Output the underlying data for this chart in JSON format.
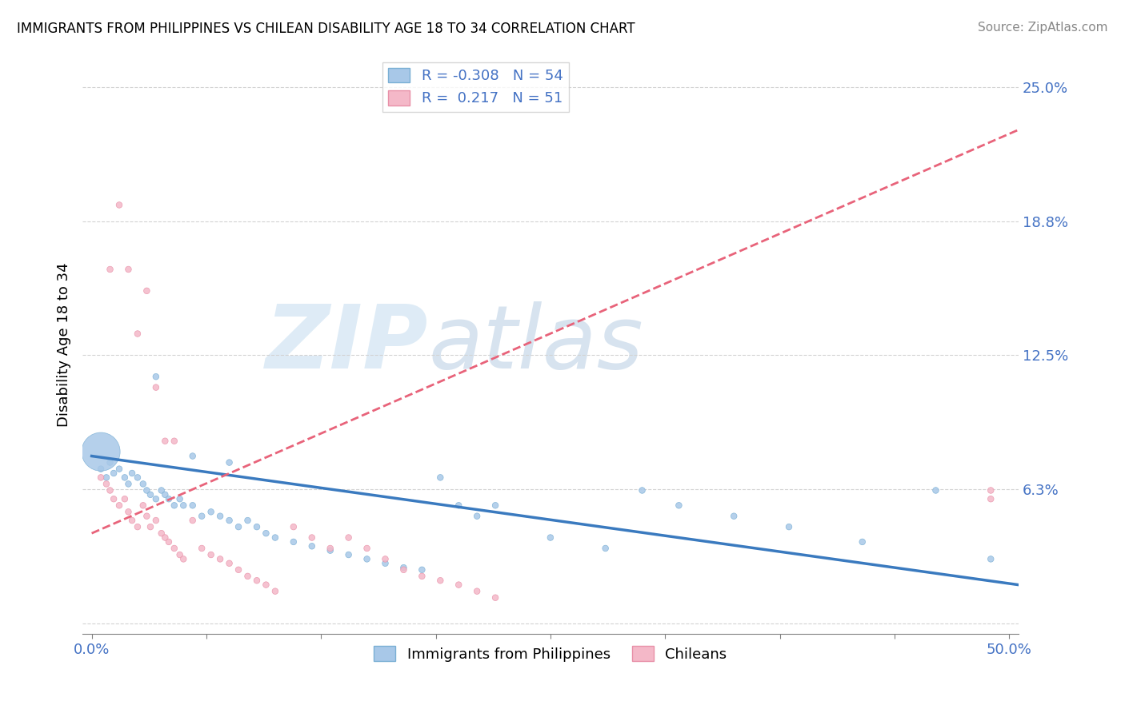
{
  "title": "IMMIGRANTS FROM PHILIPPINES VS CHILEAN DISABILITY AGE 18 TO 34 CORRELATION CHART",
  "source": "Source: ZipAtlas.com",
  "xlabel": "",
  "ylabel": "Disability Age 18 to 34",
  "xlim": [
    -0.005,
    0.505
  ],
  "ylim": [
    -0.005,
    0.265
  ],
  "ytick_vals": [
    0.0,
    0.0625,
    0.125,
    0.1875,
    0.25
  ],
  "ytick_labels": [
    "",
    "6.3%",
    "12.5%",
    "18.8%",
    "25.0%"
  ],
  "blue_color": "#a8c8e8",
  "pink_color": "#f4b8c8",
  "blue_edge_color": "#7aafd4",
  "pink_edge_color": "#e890a8",
  "blue_line_color": "#3a7abf",
  "pink_line_color": "#e8637a",
  "legend_R_blue": "-0.308",
  "legend_N_blue": "54",
  "legend_R_pink": "0.217",
  "legend_N_pink": "51",
  "watermark": "ZIPatlas",
  "blue_scatter_x": [
    0.005,
    0.008,
    0.01,
    0.012,
    0.015,
    0.018,
    0.02,
    0.022,
    0.025,
    0.028,
    0.03,
    0.032,
    0.035,
    0.038,
    0.04,
    0.042,
    0.045,
    0.048,
    0.05,
    0.055,
    0.06,
    0.065,
    0.07,
    0.075,
    0.08,
    0.085,
    0.09,
    0.095,
    0.1,
    0.11,
    0.12,
    0.13,
    0.14,
    0.15,
    0.16,
    0.17,
    0.18,
    0.19,
    0.2,
    0.21,
    0.22,
    0.25,
    0.28,
    0.3,
    0.32,
    0.35,
    0.38,
    0.42,
    0.46,
    0.49,
    0.035,
    0.055,
    0.075,
    0.005
  ],
  "blue_scatter_y": [
    0.072,
    0.068,
    0.075,
    0.07,
    0.072,
    0.068,
    0.065,
    0.07,
    0.068,
    0.065,
    0.062,
    0.06,
    0.058,
    0.062,
    0.06,
    0.058,
    0.055,
    0.058,
    0.055,
    0.055,
    0.05,
    0.052,
    0.05,
    0.048,
    0.045,
    0.048,
    0.045,
    0.042,
    0.04,
    0.038,
    0.036,
    0.034,
    0.032,
    0.03,
    0.028,
    0.026,
    0.025,
    0.068,
    0.055,
    0.05,
    0.055,
    0.04,
    0.035,
    0.062,
    0.055,
    0.05,
    0.045,
    0.038,
    0.062,
    0.03,
    0.115,
    0.078,
    0.075,
    0.08
  ],
  "blue_scatter_size": [
    30,
    30,
    30,
    30,
    30,
    30,
    30,
    30,
    30,
    30,
    30,
    30,
    30,
    30,
    30,
    30,
    30,
    30,
    30,
    30,
    30,
    30,
    30,
    30,
    30,
    30,
    30,
    30,
    30,
    30,
    30,
    30,
    30,
    30,
    30,
    30,
    30,
    30,
    30,
    30,
    30,
    30,
    30,
    30,
    30,
    30,
    30,
    30,
    30,
    30,
    30,
    30,
    30,
    1200
  ],
  "pink_scatter_x": [
    0.005,
    0.008,
    0.01,
    0.012,
    0.015,
    0.018,
    0.02,
    0.022,
    0.025,
    0.028,
    0.03,
    0.032,
    0.035,
    0.038,
    0.04,
    0.042,
    0.045,
    0.048,
    0.05,
    0.055,
    0.06,
    0.065,
    0.07,
    0.075,
    0.08,
    0.085,
    0.09,
    0.095,
    0.1,
    0.11,
    0.12,
    0.13,
    0.14,
    0.15,
    0.16,
    0.17,
    0.18,
    0.19,
    0.2,
    0.21,
    0.22,
    0.01,
    0.015,
    0.02,
    0.025,
    0.03,
    0.035,
    0.04,
    0.045,
    0.49,
    0.49
  ],
  "pink_scatter_y": [
    0.068,
    0.065,
    0.062,
    0.058,
    0.055,
    0.058,
    0.052,
    0.048,
    0.045,
    0.055,
    0.05,
    0.045,
    0.048,
    0.042,
    0.04,
    0.038,
    0.035,
    0.032,
    0.03,
    0.048,
    0.035,
    0.032,
    0.03,
    0.028,
    0.025,
    0.022,
    0.02,
    0.018,
    0.015,
    0.045,
    0.04,
    0.035,
    0.04,
    0.035,
    0.03,
    0.025,
    0.022,
    0.02,
    0.018,
    0.015,
    0.012,
    0.165,
    0.195,
    0.165,
    0.135,
    0.155,
    0.11,
    0.085,
    0.085,
    0.062,
    0.058
  ],
  "pink_scatter_size": [
    30,
    30,
    30,
    30,
    30,
    30,
    30,
    30,
    30,
    30,
    30,
    30,
    30,
    30,
    30,
    30,
    30,
    30,
    30,
    30,
    30,
    30,
    30,
    30,
    30,
    30,
    30,
    30,
    30,
    30,
    30,
    30,
    30,
    30,
    30,
    30,
    30,
    30,
    30,
    30,
    30,
    30,
    30,
    30,
    30,
    30,
    30,
    30,
    30,
    30,
    30
  ],
  "blue_trend_x": [
    0.0,
    0.505
  ],
  "blue_trend_y": [
    0.078,
    0.018
  ],
  "pink_trend_x": [
    0.0,
    0.505
  ],
  "pink_trend_y": [
    0.042,
    0.23
  ]
}
